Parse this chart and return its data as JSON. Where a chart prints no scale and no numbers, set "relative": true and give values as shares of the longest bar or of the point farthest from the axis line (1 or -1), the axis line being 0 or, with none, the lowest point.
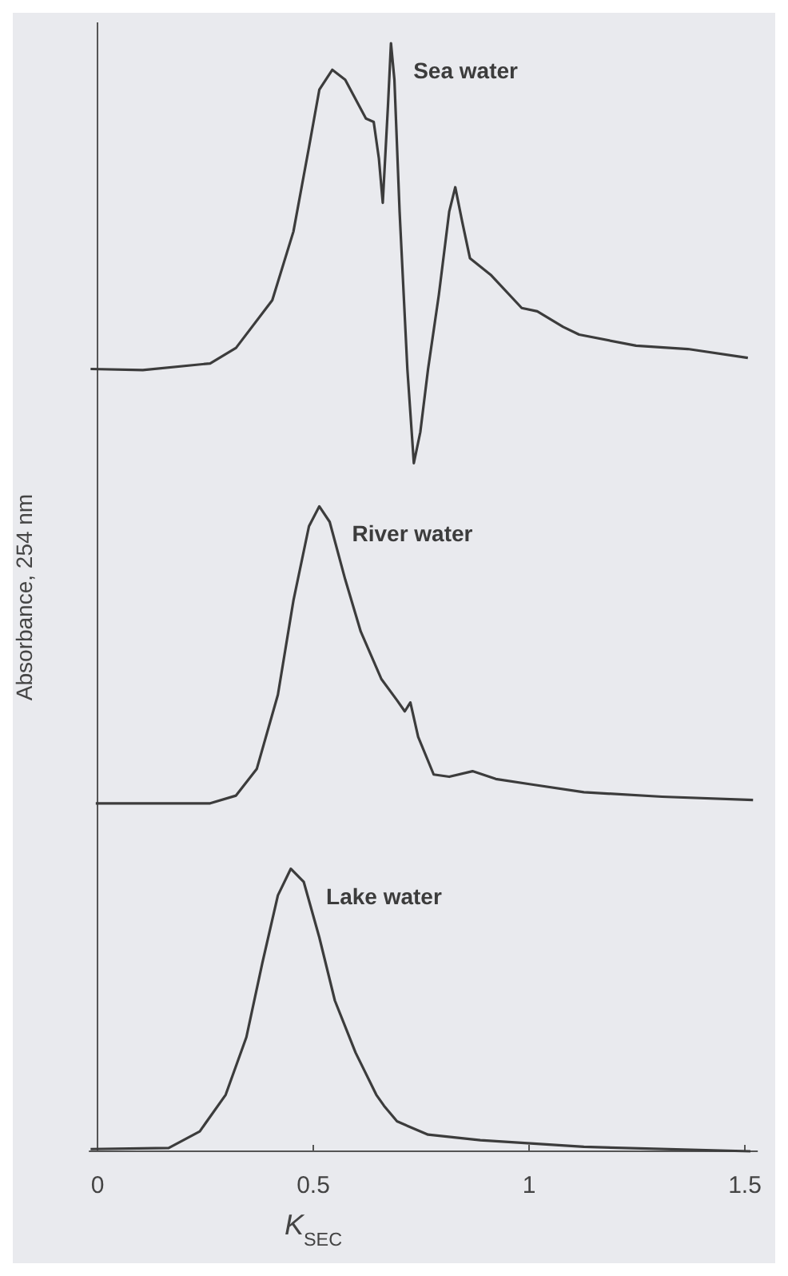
{
  "chart_data": {
    "type": "line",
    "relative": true,
    "xlabel": "K$_{SEC}$",
    "ylabel": "Absorbance, 254 nm",
    "xlim": [
      -0.02,
      1.53
    ],
    "xticks": [
      0,
      0.5,
      1,
      1.5
    ],
    "tick_labels": "x",
    "legend": false,
    "marker": "none",
    "line_style": "solid",
    "series": [
      {
        "name": "Sea water",
        "color": "#3c3c3c",
        "x": [
          -0.016,
          0.105,
          0.261,
          0.321,
          0.405,
          0.454,
          0.49,
          0.514,
          0.544,
          0.574,
          0.622,
          0.64,
          0.652,
          0.661,
          0.673,
          0.68,
          0.688,
          0.7,
          0.718,
          0.733,
          0.748,
          0.766,
          0.791,
          0.815,
          0.829,
          0.845,
          0.863,
          0.911,
          0.983,
          1.019,
          1.079,
          1.116,
          1.248,
          1.368,
          1.507
        ],
        "values": [
          0.706,
          0.705,
          0.711,
          0.725,
          0.768,
          0.83,
          0.906,
          0.958,
          0.976,
          0.967,
          0.932,
          0.929,
          0.896,
          0.856,
          0.943,
          1.0,
          0.967,
          0.848,
          0.706,
          0.621,
          0.649,
          0.706,
          0.773,
          0.848,
          0.87,
          0.839,
          0.806,
          0.791,
          0.761,
          0.758,
          0.744,
          0.737,
          0.727,
          0.724,
          0.716
        ]
      },
      {
        "name": "River water",
        "color": "#3c3c3c",
        "x": [
          -0.004,
          0.261,
          0.321,
          0.369,
          0.418,
          0.454,
          0.49,
          0.514,
          0.538,
          0.574,
          0.61,
          0.658,
          0.694,
          0.712,
          0.725,
          0.743,
          0.779,
          0.815,
          0.869,
          0.923,
          1.007,
          1.127,
          1.308,
          1.519
        ],
        "values": [
          0.314,
          0.314,
          0.321,
          0.345,
          0.412,
          0.497,
          0.564,
          0.582,
          0.568,
          0.516,
          0.469,
          0.426,
          0.407,
          0.397,
          0.405,
          0.374,
          0.34,
          0.338,
          0.343,
          0.336,
          0.331,
          0.324,
          0.32,
          0.317
        ]
      },
      {
        "name": "Lake water",
        "color": "#3c3c3c",
        "x": [
          -0.016,
          0.165,
          0.237,
          0.297,
          0.345,
          0.382,
          0.418,
          0.448,
          0.478,
          0.514,
          0.55,
          0.598,
          0.646,
          0.664,
          0.694,
          0.766,
          0.887,
          1.127,
          1.513
        ],
        "values": [
          0.002,
          0.003,
          0.018,
          0.051,
          0.103,
          0.17,
          0.231,
          0.255,
          0.243,
          0.193,
          0.136,
          0.089,
          0.051,
          0.041,
          0.027,
          0.015,
          0.01,
          0.004,
          0.0
        ]
      }
    ]
  }
}
